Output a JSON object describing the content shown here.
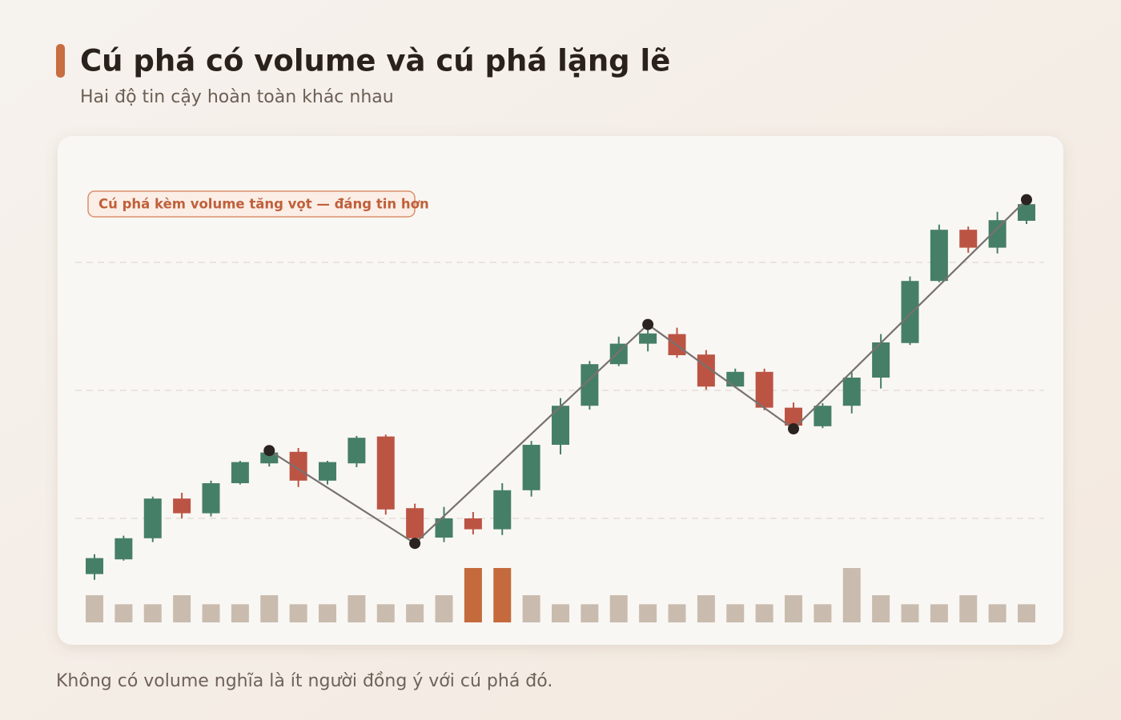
{
  "chart_data": {
    "type": "candlestick",
    "title": "Cú phá có volume và cú phá lặng lẽ",
    "subtitle": "Hai độ tin cậy hoàn toàn khác nhau",
    "annotation": "Cú phá kèm volume tăng vọt — đáng tin hơn",
    "caption": "Không có volume nghĩa là ít người đồng ý với cú phá đó.",
    "ylim": [
      70,
      130
    ],
    "yticks": [
      80,
      100,
      120
    ],
    "grid": true,
    "up_color": "#467f67",
    "down_color": "#bc5444",
    "open": [
      71.3,
      73.6,
      76.9,
      83.1,
      80.8,
      85.5,
      88.6,
      90.4,
      85.9,
      88.6,
      92.8,
      81.6,
      77,
      80,
      78.3,
      84.4,
      91.5,
      97.6,
      104.1,
      107.3,
      108.8,
      105.6,
      100.6,
      102.9,
      97.3,
      94.4,
      97.6,
      102,
      107.4,
      117.1,
      125.1,
      122.3,
      126.5
    ],
    "high": [
      74.4,
      77.3,
      83.4,
      84,
      85.9,
      89,
      91,
      91,
      89,
      92.9,
      93.1,
      82.3,
      81.8,
      81,
      85.5,
      92.1,
      98.8,
      104.6,
      108.4,
      110.4,
      109.8,
      106.3,
      103.4,
      103.4,
      98.1,
      98,
      102.8,
      108.8,
      117.8,
      125.9,
      125.6,
      127.9,
      130
    ],
    "low": [
      70.4,
      73.4,
      76.3,
      80,
      80.3,
      85.3,
      88.1,
      84.9,
      85.3,
      88,
      80.6,
      76,
      76.3,
      77.5,
      77.4,
      83.4,
      90,
      97,
      103.8,
      106.1,
      105.1,
      100.1,
      100.4,
      96.9,
      94,
      94.1,
      96.4,
      100.3,
      107.1,
      116.9,
      121.5,
      121.4,
      126
    ],
    "close": [
      73.8,
      76.9,
      83.1,
      80.8,
      85.5,
      88.8,
      90.3,
      85.9,
      88.8,
      92.6,
      81.4,
      76.9,
      80,
      78.3,
      84.4,
      91.5,
      97.6,
      104.1,
      107.3,
      108.9,
      105.5,
      100.6,
      102.9,
      97.3,
      94.5,
      97.6,
      102,
      107.5,
      117.1,
      125.1,
      122.3,
      126.6,
      129.1
    ],
    "volume": {
      "ylim": [
        0,
        6
      ],
      "values": [
        3,
        2,
        2,
        3,
        2,
        2,
        3,
        2,
        2,
        3,
        2,
        2,
        3,
        6,
        6,
        3,
        2,
        2,
        3,
        2,
        2,
        3,
        2,
        2,
        3,
        2,
        6,
        3,
        2,
        2,
        3,
        2,
        2
      ],
      "colors": [
        "#c9bcae",
        "#c9bcae",
        "#c9bcae",
        "#c9bcae",
        "#c9bcae",
        "#c9bcae",
        "#c9bcae",
        "#c9bcae",
        "#c9bcae",
        "#c9bcae",
        "#c9bcae",
        "#c9bcae",
        "#c9bcae",
        "#c46a3c",
        "#c46a3c",
        "#c9bcae",
        "#c9bcae",
        "#c9bcae",
        "#c9bcae",
        "#c9bcae",
        "#c9bcae",
        "#c9bcae",
        "#c9bcae",
        "#c9bcae",
        "#c9bcae",
        "#c9bcae",
        "#c9bcae",
        "#c9bcae",
        "#c9bcae",
        "#c9bcae",
        "#c9bcae",
        "#c9bcae",
        "#c9bcae"
      ]
    },
    "zigzag": {
      "color": "#777270",
      "x": [
        6,
        11,
        19,
        24,
        32
      ],
      "values": [
        90.6,
        76.1,
        110.3,
        94,
        129.8
      ]
    }
  }
}
